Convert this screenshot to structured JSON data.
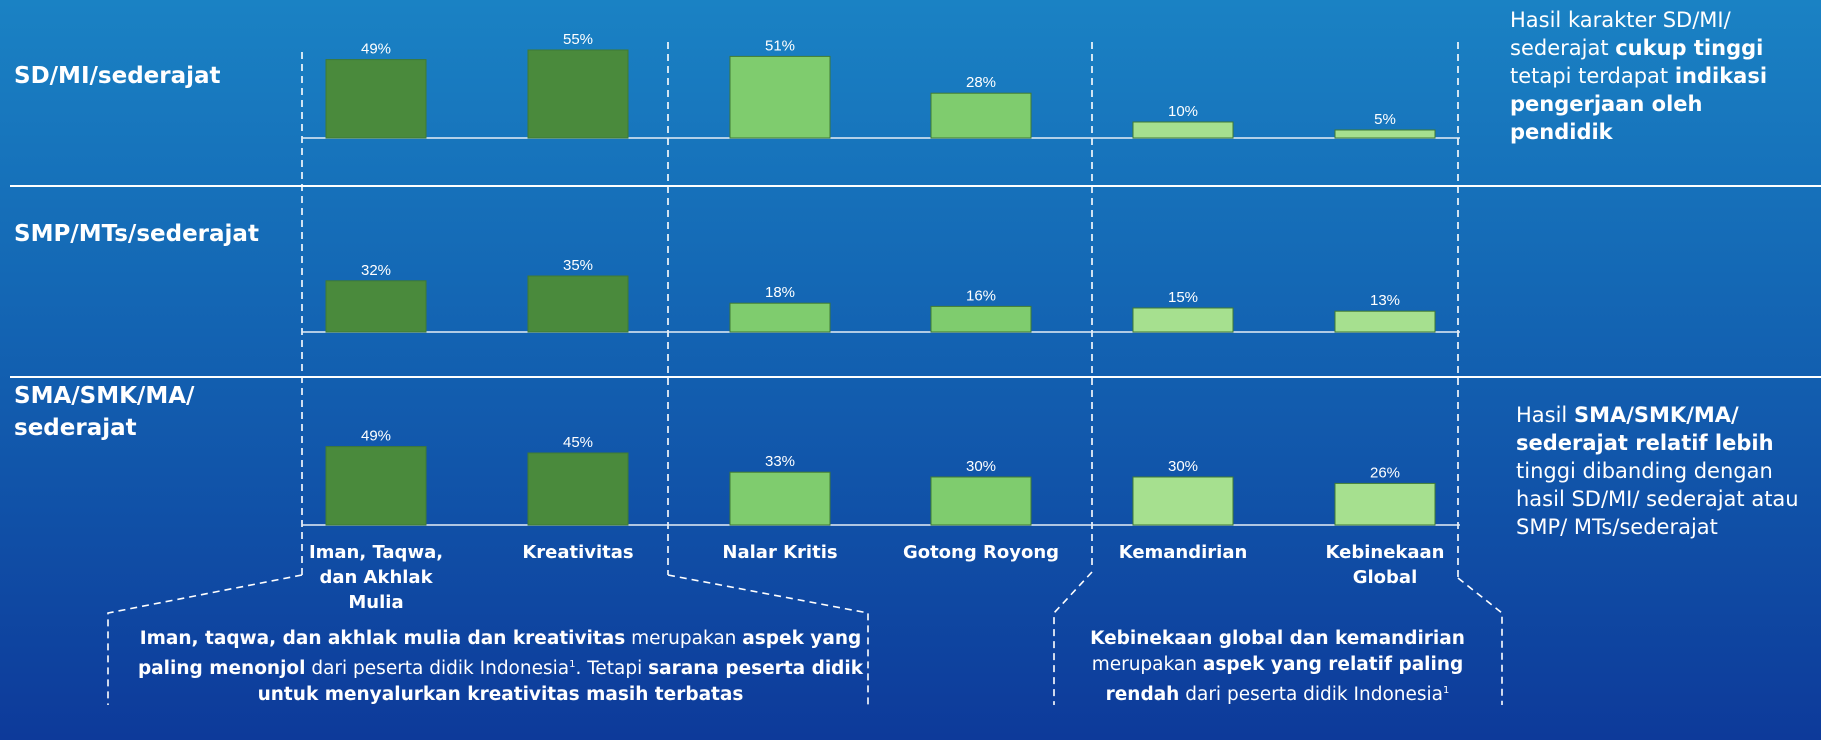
{
  "colors": {
    "highlight_bar": "#4a8a3c",
    "mid_bar": "#7fcc6e",
    "low_bar": "#a6e08f",
    "bar_outline": "#3f7a34",
    "divider": "#ffffff"
  },
  "rows": [
    {
      "label": "SD/MI/sederajat"
    },
    {
      "label": "SMP/MTs/sederajat"
    },
    {
      "label_line1": "SMA/SMK/MA/",
      "label_line2": "sederajat"
    }
  ],
  "notes": {
    "sd": {
      "p1": "Hasil karakter SD/MI/ sederajat ",
      "b1": "cukup tinggi",
      "p2": " tetapi terdapat ",
      "b2": "indikasi pengerjaan oleh pendidik"
    },
    "sma": {
      "p1": "Hasil ",
      "b1": "SMA/SMK/MA/ sederajat relatif lebih",
      "p2": " tinggi dibanding dengan hasil SD/MI/ sederajat atau SMP/ MTs/sederajat"
    }
  },
  "callouts": {
    "left": {
      "b1": "Iman, taqwa, dan akhlak mulia dan kreativitas",
      "p1": " merupakan ",
      "b2": "aspek yang paling menonjol",
      "p2": " dari peserta didik Indonesia",
      "sup": "1",
      "p3": ". Tetapi ",
      "b3": "sarana peserta didik untuk menyalurkan kreativitas masih terbatas"
    },
    "right": {
      "b1": "Kebinekaan global dan kemandirian",
      "p1": " merupakan ",
      "b2": "aspek yang relatif paling rendah",
      "p2": " dari peserta didik Indonesia",
      "sup": "1"
    }
  },
  "chart_data": {
    "type": "bar",
    "categories": [
      [
        "Iman, Taqwa,",
        "dan Akhlak",
        "Mulia"
      ],
      [
        "Kreativitas"
      ],
      [
        "Nalar Kritis"
      ],
      [
        "Gotong Royong"
      ],
      [
        "Kemandirian"
      ],
      [
        "Kebinekaan",
        "Global"
      ]
    ],
    "category_names": [
      "Iman, Taqwa, dan Akhlak Mulia",
      "Kreativitas",
      "Nalar Kritis",
      "Gotong Royong",
      "Kemandirian",
      "Kebinekaan Global"
    ],
    "series": [
      {
        "name": "SD/MI/sederajat",
        "values": [
          49,
          55,
          51,
          28,
          10,
          5
        ]
      },
      {
        "name": "SMP/MTs/sederajat",
        "values": [
          32,
          35,
          18,
          16,
          15,
          13
        ]
      },
      {
        "name": "SMA/SMK/MA/sederajat",
        "values": [
          49,
          45,
          33,
          30,
          30,
          26
        ]
      }
    ],
    "value_suffix": "%",
    "bar_groups": [
      "highlight",
      "highlight",
      "mid",
      "mid",
      "low",
      "low"
    ],
    "ylim": [
      0,
      60
    ],
    "grid": false,
    "legend": "none"
  }
}
